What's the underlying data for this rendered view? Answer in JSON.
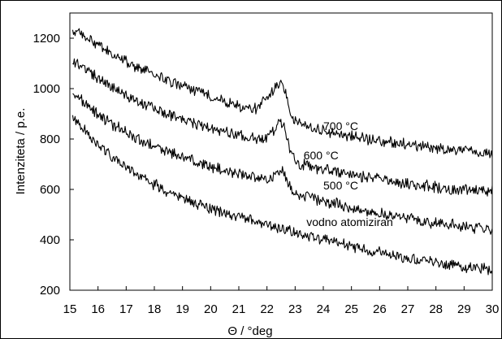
{
  "chart_data": {
    "type": "line",
    "title": "",
    "xlabel": "Θ / °deg",
    "ylabel": "Intenziteta / p.e.",
    "xlim": [
      15,
      30
    ],
    "ylim": [
      200,
      1300
    ],
    "x_ticks": [
      "15",
      "16",
      "17",
      "18",
      "19",
      "20",
      "21",
      "22",
      "23",
      "24",
      "25",
      "26",
      "27",
      "28",
      "29",
      "30"
    ],
    "y_ticks": [
      "200",
      "400",
      "600",
      "800",
      "1000",
      "1200"
    ],
    "grid": false,
    "legend": "none",
    "series": [
      {
        "name": "700 °C",
        "color": "#000000",
        "x": [
          15.1,
          15.5,
          16,
          16.5,
          17,
          17.5,
          18,
          18.5,
          19,
          19.5,
          20,
          20.5,
          21,
          21.5,
          21.8,
          22,
          22.2,
          22.4,
          22.55,
          22.7,
          22.9,
          23.2,
          23.6,
          24,
          24.5,
          25,
          25.5,
          26,
          26.5,
          27,
          27.5,
          28,
          28.5,
          29,
          29.5,
          30
        ],
        "y": [
          1225,
          1210,
          1170,
          1135,
          1105,
          1080,
          1055,
          1030,
          1010,
          990,
          970,
          950,
          930,
          915,
          940,
          965,
          990,
          1015,
          1030,
          960,
          880,
          860,
          845,
          835,
          820,
          810,
          800,
          795,
          785,
          780,
          770,
          765,
          758,
          752,
          746,
          740
        ]
      },
      {
        "name": "600 °C",
        "color": "#000000",
        "x": [
          15.1,
          15.5,
          16,
          16.5,
          17,
          17.5,
          18,
          18.5,
          19,
          19.5,
          20,
          20.5,
          21,
          21.5,
          21.8,
          22,
          22.2,
          22.4,
          22.55,
          22.7,
          22.9,
          23.2,
          23.6,
          24,
          24.5,
          25,
          25.5,
          26,
          26.5,
          27,
          27.5,
          28,
          28.5,
          29,
          29.5,
          30
        ],
        "y": [
          1115,
          1080,
          1040,
          1005,
          975,
          950,
          925,
          900,
          880,
          860,
          845,
          830,
          815,
          800,
          800,
          805,
          830,
          870,
          870,
          810,
          730,
          700,
          690,
          680,
          668,
          658,
          648,
          640,
          630,
          622,
          615,
          608,
          602,
          598,
          595,
          595
        ]
      },
      {
        "name": "500 °C",
        "color": "#000000",
        "x": [
          15.1,
          15.5,
          16,
          16.5,
          17,
          17.5,
          18,
          18.5,
          19,
          19.5,
          20,
          20.5,
          21,
          21.5,
          21.8,
          22,
          22.2,
          22.4,
          22.55,
          22.7,
          22.9,
          23.2,
          23.6,
          24,
          24.5,
          25,
          25.5,
          26,
          26.5,
          27,
          27.5,
          28,
          28.5,
          29,
          29.5,
          30
        ],
        "y": [
          980,
          945,
          900,
          860,
          825,
          795,
          770,
          748,
          728,
          710,
          690,
          675,
          660,
          650,
          645,
          645,
          648,
          660,
          680,
          640,
          590,
          580,
          565,
          555,
          540,
          528,
          515,
          505,
          495,
          485,
          476,
          468,
          460,
          453,
          447,
          442
        ]
      },
      {
        "name": "vodno atomiziran",
        "color": "#000000",
        "x": [
          15.1,
          15.5,
          16,
          16.5,
          17,
          17.5,
          18,
          18.5,
          19,
          19.5,
          20,
          20.5,
          21,
          21.5,
          22,
          22.5,
          23,
          23.5,
          24,
          24.5,
          25,
          25.5,
          26,
          26.5,
          27,
          27.5,
          28,
          28.5,
          29,
          29.5,
          30
        ],
        "y": [
          880,
          840,
          780,
          730,
          690,
          650,
          620,
          590,
          565,
          545,
          525,
          505,
          490,
          475,
          460,
          445,
          430,
          415,
          400,
          388,
          375,
          362,
          350,
          340,
          330,
          320,
          310,
          302,
          295,
          288,
          282
        ]
      }
    ],
    "annotations": [
      {
        "text": "700 °C",
        "x": 24.0,
        "y": 835
      },
      {
        "text": "600 °C",
        "x": 23.3,
        "y": 720
      },
      {
        "text": "500 °C",
        "x": 24.0,
        "y": 600
      },
      {
        "text": "vodno atomiziran",
        "x": 23.4,
        "y": 455
      }
    ]
  }
}
